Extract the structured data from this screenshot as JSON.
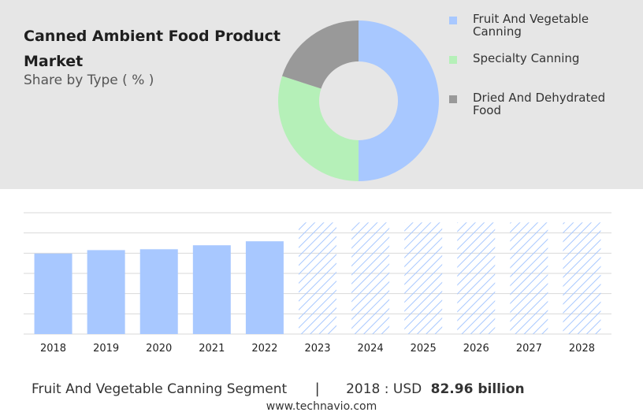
{
  "header": {
    "title": "Canned Ambient Food Product Market",
    "subtitle": "Share by Type ( % )"
  },
  "colors": {
    "fruit": "#a8c8ff",
    "specialty": "#b5f0b8",
    "dried": "#999999",
    "bar": "#a8c8ff",
    "forecast_hatch": "#a8c8ff",
    "grid": "#d9d9d9",
    "panel": "#e6e6e6"
  },
  "chart_data": [
    {
      "type": "pie",
      "subtype": "donut",
      "title": "Canned Ambient Food Product Market",
      "subtitle": "Share by Type ( % )",
      "labels": [
        "Fruit And Vegetable Canning",
        "Specialty Canning",
        "Dried And Dehydrated Food"
      ],
      "values": [
        50,
        30,
        20
      ],
      "legend_position": "right"
    },
    {
      "type": "bar",
      "categories": [
        "2018",
        "2019",
        "2020",
        "2021",
        "2022",
        "2023",
        "2024",
        "2025",
        "2026",
        "2027",
        "2028"
      ],
      "values": [
        82.96,
        86.5,
        87.4,
        91.5,
        95.6,
        null,
        null,
        null,
        null,
        null,
        null
      ],
      "forecast_categories": [
        "2023",
        "2024",
        "2025",
        "2026",
        "2027",
        "2028"
      ],
      "ylim": [
        0,
        125
      ],
      "grid": true,
      "xlabel": "",
      "ylabel": ""
    }
  ],
  "legend": {
    "items": [
      {
        "label": "Fruit And Vegetable Canning"
      },
      {
        "label": "Specialty Canning"
      },
      {
        "label": "Dried And Dehydrated Food"
      }
    ]
  },
  "footer": {
    "segment": "Fruit And Vegetable Canning Segment",
    "separator": "|",
    "year_label": "2018 : USD",
    "value": "82.96 billion",
    "url": "www.technavio.com"
  }
}
